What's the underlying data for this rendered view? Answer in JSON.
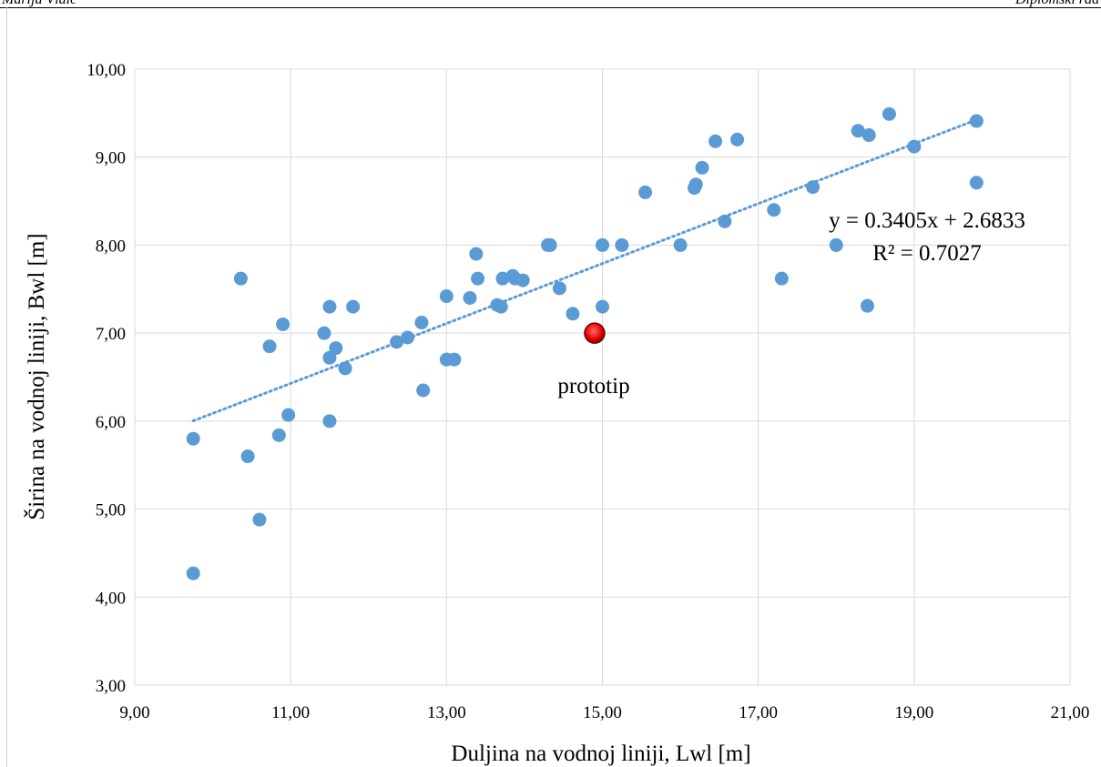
{
  "page": {
    "header_left": "Marija Vlaić",
    "header_right": "Diplomski rad"
  },
  "colors": {
    "points": "#5b9bd5",
    "trendline": "#5b9bd5",
    "highlight": "#e00000",
    "grid": "#d9d9d9"
  },
  "chart_data": {
    "type": "scatter",
    "title": "",
    "xlabel": "Duljina na vodnoj liniji, Lwl [m]",
    "ylabel": "Širina na vodnoj liniji, Bwl [m]",
    "xlim": [
      9,
      21
    ],
    "ylim": [
      3,
      10
    ],
    "xticks": [
      "9,00",
      "11,00",
      "13,00",
      "15,00",
      "17,00",
      "19,00",
      "21,00"
    ],
    "yticks": [
      "3,00",
      "4,00",
      "5,00",
      "6,00",
      "7,00",
      "8,00",
      "9,00",
      "10,00"
    ],
    "grid": true,
    "legend": "none",
    "points": [
      [
        9.75,
        5.8
      ],
      [
        9.75,
        4.27
      ],
      [
        10.36,
        7.62
      ],
      [
        10.45,
        5.6
      ],
      [
        10.6,
        4.88
      ],
      [
        10.73,
        6.85
      ],
      [
        10.85,
        5.84
      ],
      [
        10.9,
        7.1
      ],
      [
        10.97,
        6.07
      ],
      [
        11.43,
        7.0
      ],
      [
        11.5,
        7.3
      ],
      [
        11.5,
        6.72
      ],
      [
        11.5,
        6.0
      ],
      [
        11.58,
        6.83
      ],
      [
        11.7,
        6.6
      ],
      [
        11.8,
        7.3
      ],
      [
        12.36,
        6.9
      ],
      [
        12.5,
        6.95
      ],
      [
        12.68,
        7.12
      ],
      [
        12.7,
        6.35
      ],
      [
        13.0,
        7.42
      ],
      [
        13.0,
        6.7
      ],
      [
        13.1,
        6.7
      ],
      [
        13.3,
        7.4
      ],
      [
        13.38,
        7.9
      ],
      [
        13.4,
        7.62
      ],
      [
        13.65,
        7.32
      ],
      [
        13.7,
        7.3
      ],
      [
        13.72,
        7.62
      ],
      [
        13.85,
        7.65
      ],
      [
        13.88,
        7.62
      ],
      [
        13.98,
        7.6
      ],
      [
        14.3,
        8.0
      ],
      [
        14.33,
        8.0
      ],
      [
        14.45,
        7.51
      ],
      [
        14.62,
        7.22
      ],
      [
        15.0,
        8.0
      ],
      [
        15.0,
        7.3
      ],
      [
        15.25,
        8.0
      ],
      [
        15.55,
        8.6
      ],
      [
        16.0,
        8.0
      ],
      [
        16.18,
        8.65
      ],
      [
        16.2,
        8.69
      ],
      [
        16.28,
        8.88
      ],
      [
        16.45,
        9.18
      ],
      [
        16.57,
        8.27
      ],
      [
        16.73,
        9.2
      ],
      [
        17.2,
        8.4
      ],
      [
        17.3,
        7.62
      ],
      [
        17.7,
        8.66
      ],
      [
        18.0,
        8.0
      ],
      [
        18.28,
        9.3
      ],
      [
        18.4,
        7.31
      ],
      [
        18.42,
        9.25
      ],
      [
        18.68,
        9.49
      ],
      [
        19.0,
        9.12
      ],
      [
        19.8,
        9.41
      ],
      [
        19.8,
        8.71
      ]
    ],
    "highlight": {
      "label": "prototip",
      "x": 14.9,
      "y": 7.0
    },
    "trendline": {
      "type": "linear",
      "slope": 0.3405,
      "intercept": 2.6833,
      "x_range": [
        9.75,
        19.8
      ],
      "equation": "y = 0.3405x + 2.6833",
      "r2": "R² = 0.7027"
    }
  }
}
